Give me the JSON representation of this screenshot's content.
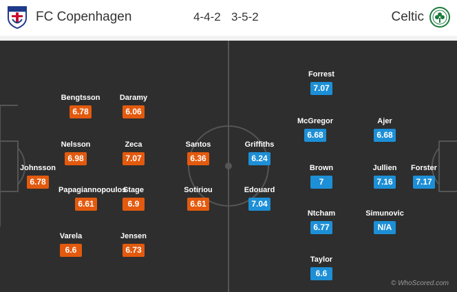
{
  "header": {
    "home_team": "FC Copenhagen",
    "home_formation": "4-4-2",
    "away_formation": "3-5-2",
    "away_team": "Celtic"
  },
  "colors": {
    "home_rating": "#e35a0e",
    "away_rating": "#1d8fd6",
    "pitch": "#2e2e2e"
  },
  "home_players": [
    {
      "name": "Johnsson",
      "rating": "6.78"
    },
    {
      "name": "Bengtsson",
      "rating": "6.78"
    },
    {
      "name": "Nelsson",
      "rating": "6.98"
    },
    {
      "name": "Papagiannopoulos",
      "rating": "6.61"
    },
    {
      "name": "Varela",
      "rating": "6.6"
    },
    {
      "name": "Daramy",
      "rating": "6.06"
    },
    {
      "name": "Zeca",
      "rating": "7.07"
    },
    {
      "name": "Stage",
      "rating": "6.9"
    },
    {
      "name": "Jensen",
      "rating": "6.73"
    },
    {
      "name": "Santos",
      "rating": "6.36"
    },
    {
      "name": "Sotiriou",
      "rating": "6.61"
    }
  ],
  "away_players": [
    {
      "name": "Griffiths",
      "rating": "6.24"
    },
    {
      "name": "Edouard",
      "rating": "7.04"
    },
    {
      "name": "Forrest",
      "rating": "7.07"
    },
    {
      "name": "McGregor",
      "rating": "6.68"
    },
    {
      "name": "Brown",
      "rating": "7"
    },
    {
      "name": "Ntcham",
      "rating": "6.77"
    },
    {
      "name": "Taylor",
      "rating": "6.6"
    },
    {
      "name": "Ajer",
      "rating": "6.68"
    },
    {
      "name": "Jullien",
      "rating": "7.16"
    },
    {
      "name": "Simunovic",
      "rating": "N/A"
    },
    {
      "name": "Forster",
      "rating": "7.17"
    }
  ],
  "watermark": "© WhoScored.com"
}
